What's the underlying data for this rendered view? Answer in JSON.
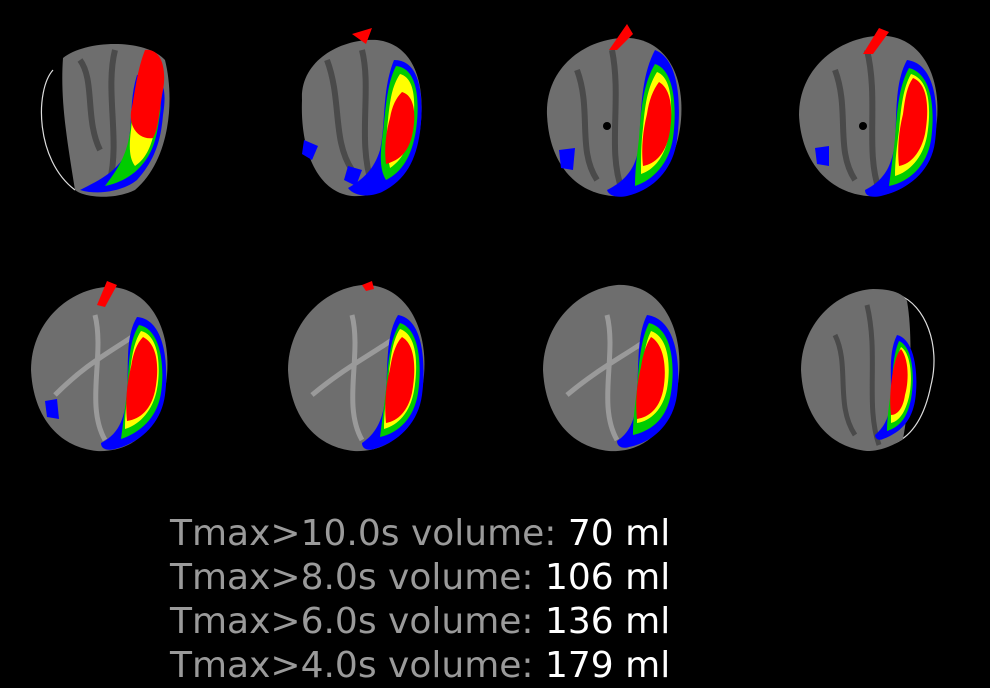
{
  "colors": {
    "background": "#000000",
    "brain": "#6e6e6e",
    "threshold_10s": "#ff0000",
    "threshold_8s": "#ffff00",
    "threshold_6s": "#00cc00",
    "threshold_4s": "#0000ff",
    "label_text": "#9a9a9a",
    "value_text": "#ffffff"
  },
  "slices": [
    {
      "index": 1
    },
    {
      "index": 2
    },
    {
      "index": 3
    },
    {
      "index": 4
    },
    {
      "index": 5
    },
    {
      "index": 6
    },
    {
      "index": 7
    },
    {
      "index": 8
    }
  ],
  "results": [
    {
      "label": "Tmax>10.0s volume: ",
      "value": "70 ml"
    },
    {
      "label": "Tmax>8.0s volume: ",
      "value": "106 ml"
    },
    {
      "label": "Tmax>6.0s volume: ",
      "value": "136 ml"
    },
    {
      "label": "Tmax>4.0s volume: ",
      "value": "179 ml"
    }
  ]
}
